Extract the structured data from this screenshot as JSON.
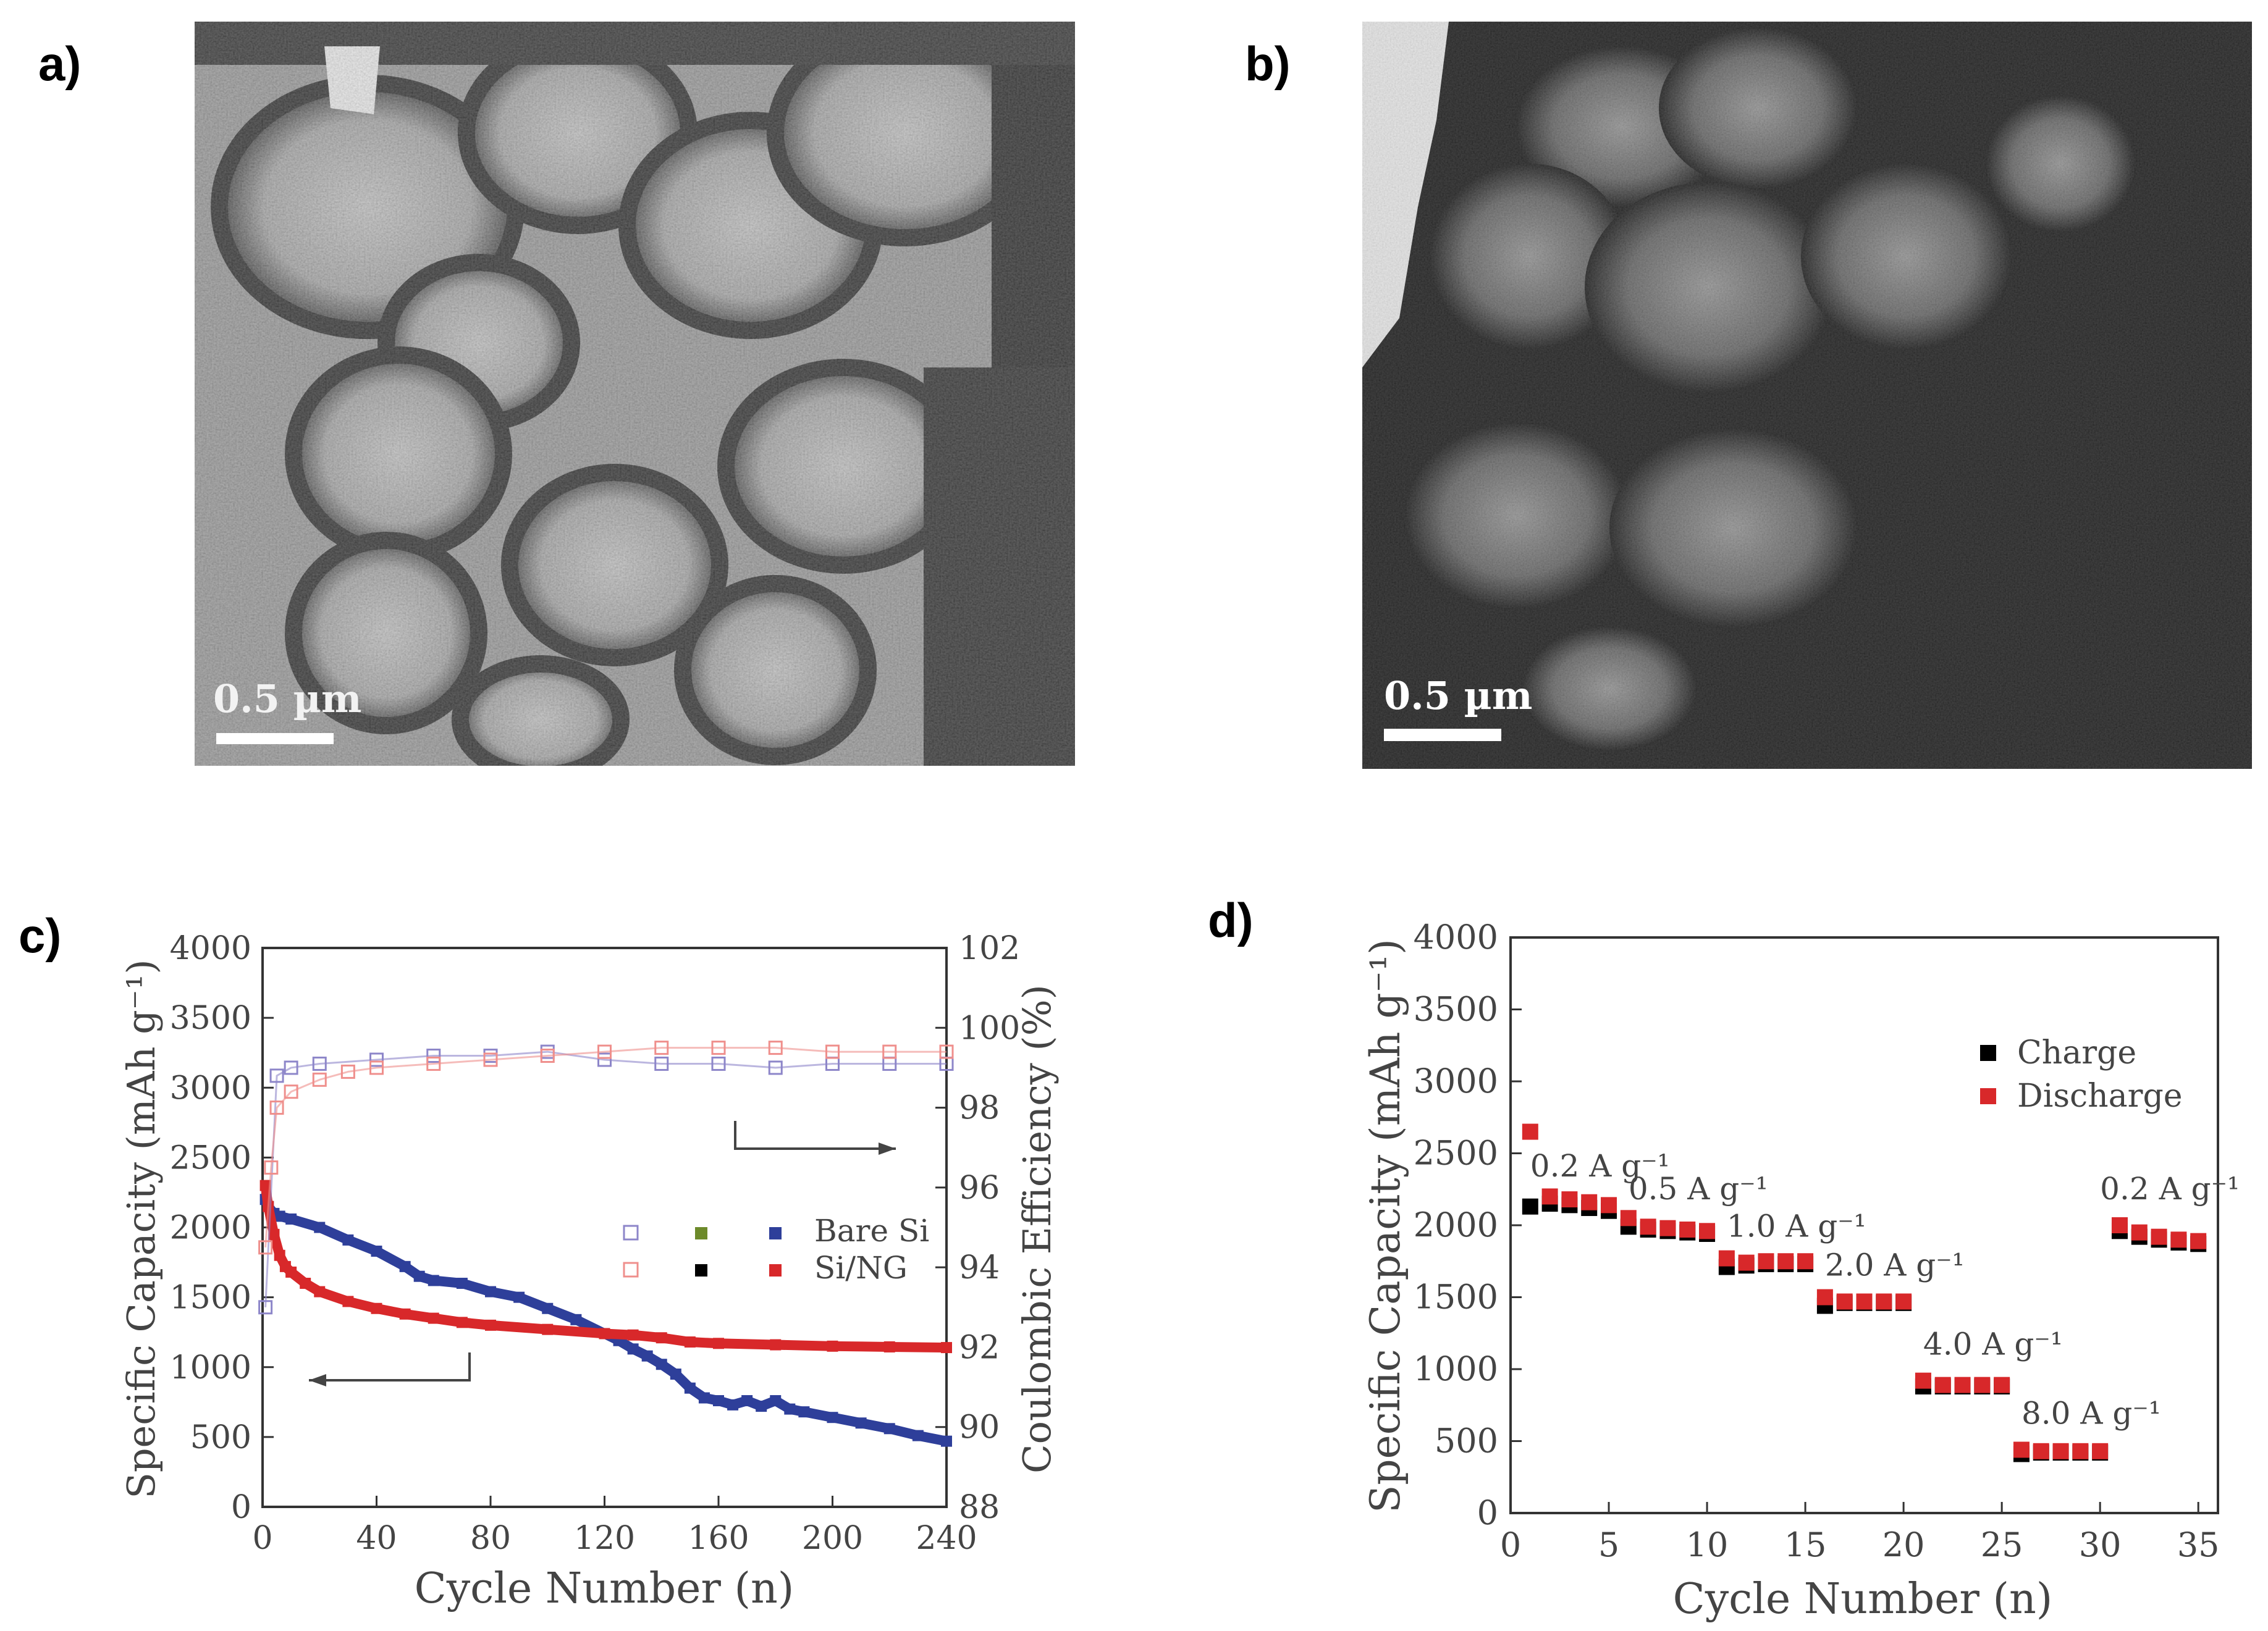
{
  "figure": {
    "labels": {
      "a": "a)",
      "b": "b)",
      "c": "c)",
      "d": "d)"
    }
  },
  "images": {
    "a": {
      "scale_label": "0.5 µm"
    },
    "b": {
      "scale_label": "0.5 µm"
    }
  },
  "chart_data": [
    {
      "id": "c",
      "type": "scatter",
      "title": "",
      "xlabel": "Cycle Number (n)",
      "ylabel": "Specific Capacity (mAh g⁻¹)",
      "ylabel_right": "Coulombic Efficiency (%)",
      "xlim": [
        0,
        240
      ],
      "ylim": [
        0,
        4000
      ],
      "ylim_right": [
        88,
        102
      ],
      "x_ticks": [
        0,
        40,
        80,
        120,
        160,
        200,
        240
      ],
      "y_ticks": [
        0,
        500,
        1000,
        1500,
        2000,
        2500,
        3000,
        3500,
        4000
      ],
      "y_ticks_right": [
        88,
        90,
        92,
        94,
        96,
        98,
        100,
        102
      ],
      "series": [
        {
          "name": "Bare Si",
          "axis": "left",
          "color": "#2e3f9a",
          "x": [
            1,
            2,
            4,
            6,
            10,
            20,
            30,
            40,
            50,
            55,
            60,
            70,
            80,
            90,
            100,
            110,
            120,
            125,
            130,
            135,
            140,
            145,
            150,
            155,
            160,
            165,
            170,
            175,
            180,
            185,
            190,
            200,
            210,
            220,
            230,
            240
          ],
          "values": [
            2200,
            2150,
            2100,
            2080,
            2060,
            2000,
            1910,
            1830,
            1720,
            1650,
            1620,
            1600,
            1540,
            1500,
            1420,
            1340,
            1240,
            1190,
            1130,
            1080,
            1020,
            950,
            850,
            780,
            760,
            730,
            760,
            720,
            760,
            700,
            680,
            640,
            600,
            560,
            510,
            470
          ]
        },
        {
          "name": "Si/NG",
          "axis": "left",
          "color": "#d8282a",
          "x": [
            1,
            2,
            4,
            6,
            8,
            10,
            15,
            20,
            30,
            40,
            50,
            60,
            70,
            80,
            100,
            120,
            130,
            140,
            150,
            160,
            180,
            200,
            220,
            240
          ],
          "values": [
            2300,
            2150,
            1950,
            1800,
            1720,
            1680,
            1600,
            1540,
            1470,
            1420,
            1380,
            1350,
            1320,
            1300,
            1270,
            1240,
            1230,
            1210,
            1180,
            1170,
            1160,
            1150,
            1145,
            1140
          ]
        },
        {
          "name": "Bare Si CE",
          "axis": "right",
          "color": "#8d86c9",
          "x": [
            1,
            5,
            10,
            20,
            40,
            60,
            80,
            100,
            120,
            140,
            160,
            180,
            200,
            220,
            240
          ],
          "values": [
            93,
            98.8,
            99.0,
            99.1,
            99.2,
            99.3,
            99.3,
            99.4,
            99.2,
            99.1,
            99.1,
            99.0,
            99.1,
            99.1,
            99.1
          ]
        },
        {
          "name": "Si/NG CE",
          "axis": "right",
          "color": "#ef8f8c",
          "x": [
            1,
            3,
            5,
            10,
            20,
            30,
            40,
            60,
            80,
            100,
            120,
            140,
            160,
            180,
            200,
            220,
            240
          ],
          "values": [
            94.5,
            96.5,
            98.0,
            98.4,
            98.7,
            98.9,
            99.0,
            99.1,
            99.2,
            99.3,
            99.4,
            99.5,
            99.5,
            99.5,
            99.4,
            99.4,
            99.4
          ]
        }
      ],
      "legend": {
        "position": "center-right",
        "entries": [
          "Bare Si",
          "Si/NG"
        ]
      }
    },
    {
      "id": "d",
      "type": "scatter",
      "title": "",
      "xlabel": "Cycle Number (n)",
      "ylabel": "Specific Capacity (mAh g⁻¹)",
      "xlim": [
        0,
        36
      ],
      "ylim": [
        0,
        4000
      ],
      "x_ticks": [
        0,
        5,
        10,
        15,
        20,
        25,
        30,
        35
      ],
      "y_ticks": [
        0,
        500,
        1000,
        1500,
        2000,
        2500,
        3000,
        3500,
        4000
      ],
      "series": [
        {
          "name": "Charge",
          "color": "#000000",
          "x": [
            1,
            2,
            3,
            4,
            5,
            6,
            7,
            8,
            9,
            10,
            11,
            12,
            13,
            14,
            15,
            16,
            17,
            18,
            19,
            20,
            21,
            22,
            23,
            24,
            25,
            26,
            27,
            28,
            29,
            30,
            31,
            32,
            33,
            34,
            35
          ],
          "values": [
            2130,
            2150,
            2140,
            2120,
            2100,
            1990,
            1970,
            1960,
            1950,
            1940,
            1710,
            1720,
            1730,
            1730,
            1730,
            1440,
            1460,
            1460,
            1460,
            1460,
            880,
            880,
            880,
            880,
            880,
            410,
            420,
            420,
            420,
            420,
            1960,
            1920,
            1900,
            1880,
            1870
          ]
        },
        {
          "name": "Discharge",
          "color": "#d8282a",
          "x": [
            1,
            2,
            3,
            4,
            5,
            6,
            7,
            8,
            9,
            10,
            11,
            12,
            13,
            14,
            15,
            16,
            17,
            18,
            19,
            20,
            21,
            22,
            23,
            24,
            25,
            26,
            27,
            28,
            29,
            30,
            31,
            32,
            33,
            34,
            35
          ],
          "values": [
            2650,
            2200,
            2180,
            2160,
            2140,
            2050,
            1990,
            1980,
            1970,
            1960,
            1770,
            1740,
            1750,
            1750,
            1750,
            1500,
            1470,
            1470,
            1470,
            1470,
            920,
            890,
            890,
            890,
            890,
            440,
            430,
            430,
            430,
            430,
            2000,
            1950,
            1920,
            1900,
            1890
          ]
        }
      ],
      "annotations": [
        "0.2 A g⁻¹",
        "0.5 A g⁻¹",
        "1.0 A g⁻¹",
        "2.0 A g⁻¹",
        "4.0 A g⁻¹",
        "8.0 A g⁻¹",
        "0.2 A g⁻¹"
      ],
      "legend": {
        "position": "upper-right",
        "entries": [
          "Charge",
          "Discharge"
        ]
      }
    }
  ]
}
